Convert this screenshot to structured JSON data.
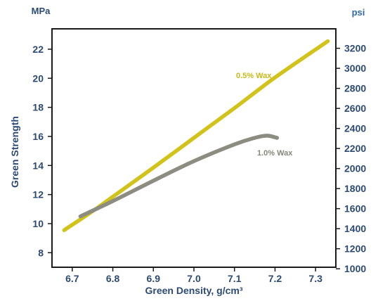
{
  "chart_data": {
    "type": "line",
    "title": "",
    "xlabel": "Green Density, g/cm³",
    "ylabel": "Green Strength",
    "y_unit_left": "MPa",
    "y_unit_right": "psi",
    "xlim": [
      6.65,
      7.35
    ],
    "ylim": [
      7.0,
      23.4
    ],
    "x_ticks": [
      "6.7",
      "6.8",
      "6.9",
      "7.0",
      "7.1",
      "7.2",
      "7.3"
    ],
    "y_ticks_left": [
      "8",
      "10",
      "12",
      "14",
      "16",
      "18",
      "20",
      "22"
    ],
    "y_ticks_right": [
      "1000",
      "1200",
      "1400",
      "1600",
      "1800",
      "2000",
      "2200",
      "2400",
      "2600",
      "2800",
      "3000",
      "3200"
    ],
    "grid": false,
    "series": [
      {
        "name": "0.5% Wax",
        "color": "#d2c31b",
        "x": [
          6.68,
          6.75,
          6.8,
          6.9,
          7.0,
          7.1,
          7.2,
          7.33
        ],
        "y": [
          9.55,
          10.85,
          11.85,
          13.85,
          15.9,
          17.95,
          20.05,
          22.55
        ]
      },
      {
        "name": "1.0% Wax",
        "color": "#8c8c80",
        "x": [
          6.72,
          6.8,
          6.9,
          7.0,
          7.1,
          7.15,
          7.18,
          7.205
        ],
        "y": [
          10.5,
          11.55,
          12.95,
          14.3,
          15.45,
          15.9,
          16.05,
          15.9
        ]
      }
    ],
    "colors": {
      "axis_text": "#2c4a74",
      "unit_left": "#2c4a74",
      "unit_right": "#2f6aa8",
      "frame": "#1a1a1a"
    }
  }
}
